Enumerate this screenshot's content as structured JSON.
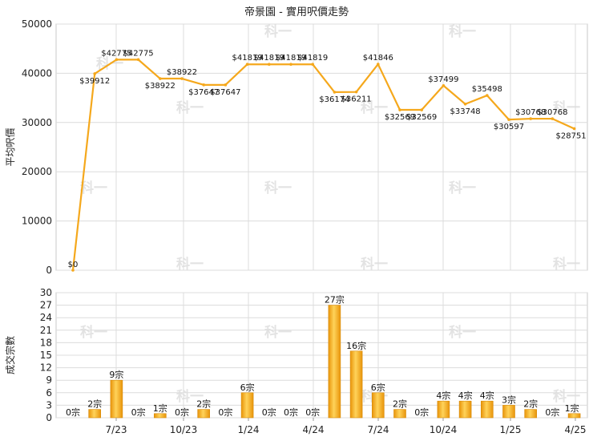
{
  "chart_data": [
    {
      "type": "line",
      "title": "帝景園 - 實用呎價走勢",
      "ylabel": "平均呎價",
      "ylim": [
        0,
        50000
      ],
      "yticks": [
        "0",
        "10000",
        "20000",
        "30000",
        "40000",
        "50000"
      ],
      "grid": true,
      "color": "#f5a81c",
      "values": [
        0,
        39912,
        42775,
        42775,
        38922,
        38922,
        37647,
        37647,
        41819,
        41819,
        41819,
        41819,
        36174,
        36211,
        41846,
        32569,
        32569,
        37499,
        33748,
        35498,
        30597,
        30768,
        30768,
        28751
      ],
      "labels": [
        "$0",
        "$39912",
        "$42775",
        "$42775",
        "$38922",
        "$38922",
        "$37647",
        "$37647",
        "$41819",
        "$41819",
        "$41819",
        "$41819",
        "$36174",
        "$36211",
        "$41846",
        "$32569",
        "$32569",
        "$37499",
        "$33748",
        "$35498",
        "$30597",
        "$30768",
        "$30768",
        "$28751"
      ]
    },
    {
      "type": "bar",
      "ylabel": "成交宗數",
      "ylim": [
        0,
        30
      ],
      "yticks": [
        "0",
        "3",
        "6",
        "9",
        "12",
        "15",
        "18",
        "21",
        "24",
        "27",
        "30"
      ],
      "grid": true,
      "color": "#f5a81c",
      "values": [
        0,
        2,
        9,
        0,
        1,
        0,
        2,
        0,
        6,
        0,
        0,
        0,
        27,
        16,
        6,
        2,
        0,
        4,
        4,
        4,
        3,
        2,
        0,
        1
      ],
      "labels": [
        "0宗",
        "2宗",
        "9宗",
        "0宗",
        "1宗",
        "0宗",
        "2宗",
        "0宗",
        "6宗",
        "0宗",
        "0宗",
        "0宗",
        "27宗",
        "16宗",
        "6宗",
        "2宗",
        "0宗",
        "4宗",
        "4宗",
        "4宗",
        "3宗",
        "2宗",
        "0宗",
        "1宗"
      ],
      "xticks": [
        "7/23",
        "10/23",
        "1/24",
        "4/24",
        "7/24",
        "10/24",
        "1/25",
        "4/25"
      ]
    }
  ],
  "watermark": "科一"
}
